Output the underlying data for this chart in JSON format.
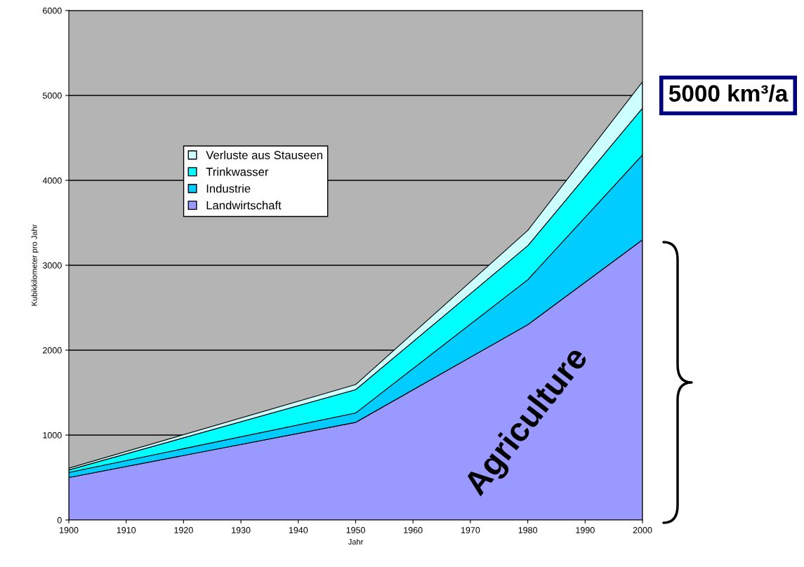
{
  "chart_data": {
    "type": "area",
    "stacked": true,
    "x": [
      1900,
      1950,
      1980,
      2000
    ],
    "series": [
      {
        "name": "Landwirtschaft",
        "color": "#9999ff",
        "values": [
          500,
          1150,
          2300,
          3300
        ]
      },
      {
        "name": "Industrie",
        "color": "#00ccff",
        "values": [
          60,
          110,
          530,
          1000
        ]
      },
      {
        "name": "Trinkwasser",
        "color": "#00ffff",
        "values": [
          30,
          275,
          400,
          550
        ]
      },
      {
        "name": "Verluste aus Stauseen",
        "color": "#ccffff",
        "values": [
          20,
          60,
          180,
          310
        ]
      }
    ],
    "xlabel": "Jahr",
    "ylabel": "Kubikkilometer pro Jahr",
    "xlim": [
      1900,
      2000
    ],
    "xticks": [
      1900,
      1910,
      1920,
      1930,
      1940,
      1950,
      1960,
      1970,
      1980,
      1990,
      2000
    ],
    "ylim": [
      0,
      6000
    ],
    "yticks": [
      0,
      1000,
      2000,
      3000,
      4000,
      5000,
      6000
    ],
    "grid": "y",
    "legend": "left",
    "annotations": [
      "5000 km³/a",
      "Agriculture"
    ]
  }
}
